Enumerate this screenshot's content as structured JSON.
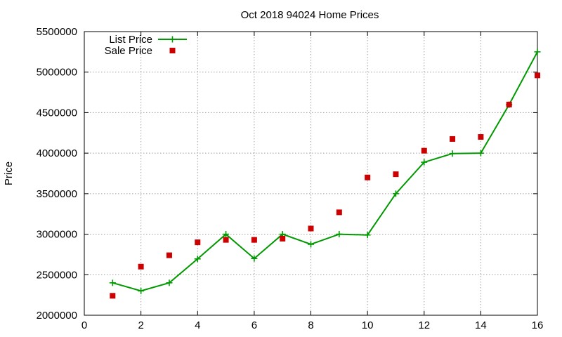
{
  "chart_data": {
    "type": "line",
    "title": "Oct 2018 94024 Home Prices",
    "xlabel": "",
    "ylabel": "Price",
    "xlim": [
      0,
      16
    ],
    "ylim": [
      2000000,
      5500000
    ],
    "x_ticks": [
      0,
      2,
      4,
      6,
      8,
      10,
      12,
      14,
      16
    ],
    "y_ticks": [
      2000000,
      2500000,
      3000000,
      3500000,
      4000000,
      4500000,
      5000000,
      5500000
    ],
    "grid": true,
    "legend_position": "top-left",
    "series": [
      {
        "name": "List Price",
        "style": "linespoints",
        "color": "#009900",
        "marker": "plus",
        "x": [
          1,
          2,
          3,
          4,
          5,
          6,
          7,
          8,
          9,
          10,
          11,
          12,
          13,
          14,
          15,
          16
        ],
        "y": [
          2400000,
          2300000,
          2400000,
          2695000,
          3000000,
          2700000,
          3000000,
          2875000,
          3000000,
          2990000,
          3500000,
          3888000,
          3995000,
          4000000,
          4598000,
          5250000
        ]
      },
      {
        "name": "Sale Price",
        "style": "points",
        "color": "#cc0000",
        "marker": "square",
        "x": [
          1,
          2,
          3,
          4,
          5,
          6,
          7,
          8,
          9,
          10,
          11,
          12,
          13,
          14,
          15,
          16
        ],
        "y": [
          2240000,
          2600000,
          2740000,
          2900000,
          2930000,
          2930000,
          2945000,
          3070000,
          3270000,
          3700000,
          3740000,
          4030000,
          4175000,
          4200000,
          4600000,
          4960000
        ]
      }
    ]
  }
}
